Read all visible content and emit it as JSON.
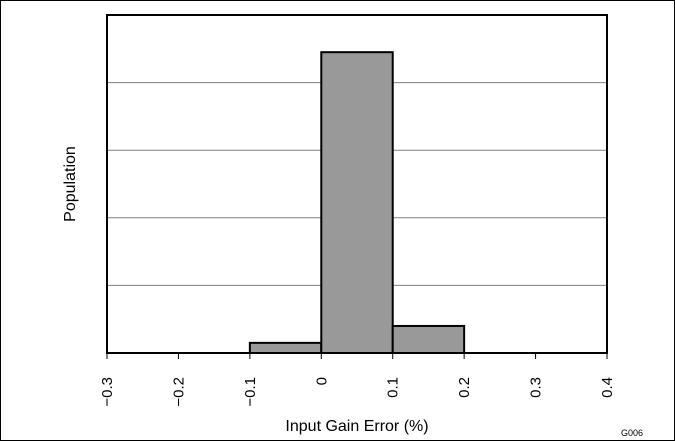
{
  "chart_data": {
    "type": "bar",
    "title": "",
    "xlabel": "Input Gain Error (%)",
    "ylabel": "Population",
    "xlim": [
      -0.3,
      0.4
    ],
    "ylim": [
      0,
      100
    ],
    "x_ticks": [
      "−0.3",
      "−0.2",
      "−0.1",
      "0",
      "0.1",
      "0.2",
      "0.3",
      "0.4"
    ],
    "x_tick_values": [
      -0.3,
      -0.2,
      -0.1,
      0,
      0.1,
      0.2,
      0.3,
      0.4
    ],
    "y_tick_labels_shown": false,
    "grid": "horizontal",
    "bins": [
      {
        "from": -0.1,
        "to": 0.0,
        "value": 3
      },
      {
        "from": 0.0,
        "to": 0.1,
        "value": 89
      },
      {
        "from": 0.1,
        "to": 0.2,
        "value": 8
      }
    ],
    "annotation": "G006",
    "colors": {
      "bar_fill": "#999999",
      "bar_stroke": "#000000",
      "grid": "#808080"
    }
  }
}
